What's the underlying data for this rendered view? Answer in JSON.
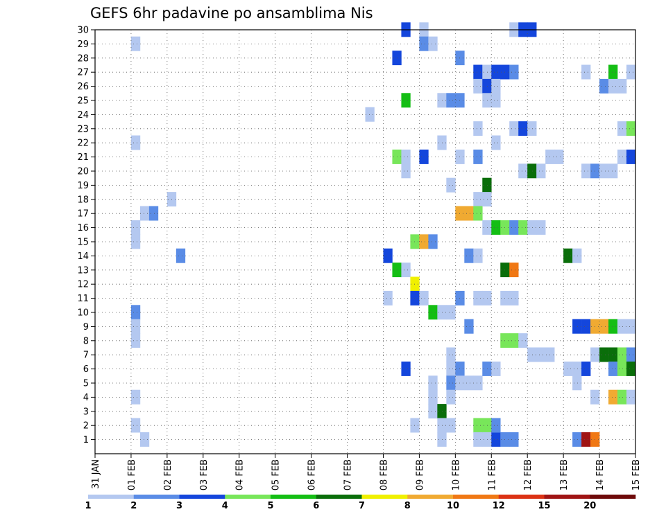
{
  "chart_data": {
    "type": "heatmap",
    "title": "GEFS 6hr padavine po ansamblima Nis",
    "xlabel": "",
    "ylabel": "",
    "x_ticks": [
      "31 JAN",
      "01 FEB",
      "02 FEB",
      "03 FEB",
      "04 FEB",
      "05 FEB",
      "06 FEB",
      "07 FEB",
      "08 FEB",
      "09 FEB",
      "10 FEB",
      "11 FEB",
      "12 FEB",
      "13 FEB",
      "14 FEB",
      "15 FEB"
    ],
    "y_ticks": [
      1,
      2,
      3,
      4,
      5,
      6,
      7,
      8,
      9,
      10,
      11,
      12,
      13,
      14,
      15,
      16,
      17,
      18,
      19,
      20,
      21,
      22,
      23,
      24,
      25,
      26,
      27,
      28,
      29,
      30
    ],
    "x_range_days": [
      0,
      15
    ],
    "y_range": [
      0,
      30
    ],
    "grid": true,
    "colorbar": {
      "labels": [
        "1",
        "2",
        "3",
        "4",
        "5",
        "6",
        "7",
        "8",
        "10",
        "12",
        "15",
        "20"
      ],
      "colors": [
        "#b4c8f0",
        "#5a8ce6",
        "#1446dc",
        "#78e65a",
        "#14be14",
        "#0a6e0a",
        "#f0f000",
        "#f0aa32",
        "#f07814",
        "#dc3214",
        "#a01414",
        "#6e0a0a"
      ]
    },
    "cells": [
      [
        1.0,
        29,
        0
      ],
      [
        1.0,
        22,
        0
      ],
      [
        1.0,
        16,
        0
      ],
      [
        1.0,
        15,
        0
      ],
      [
        1.0,
        10,
        1
      ],
      [
        1.0,
        9,
        0
      ],
      [
        1.0,
        8,
        0
      ],
      [
        1.0,
        4,
        0
      ],
      [
        1.0,
        2,
        0
      ],
      [
        1.25,
        17,
        0
      ],
      [
        1.25,
        1,
        0
      ],
      [
        1.5,
        17,
        1
      ],
      [
        2.0,
        18,
        0
      ],
      [
        2.25,
        14,
        1
      ],
      [
        7.5,
        24,
        0
      ],
      [
        8.0,
        14,
        2
      ],
      [
        8.0,
        11,
        0
      ],
      [
        8.25,
        28,
        2
      ],
      [
        8.25,
        21,
        3
      ],
      [
        8.25,
        13,
        4
      ],
      [
        8.5,
        30,
        2
      ],
      [
        8.5,
        25,
        4
      ],
      [
        8.5,
        21,
        0
      ],
      [
        8.5,
        20,
        0
      ],
      [
        8.5,
        13,
        0
      ],
      [
        8.5,
        6,
        2
      ],
      [
        8.75,
        15,
        3
      ],
      [
        8.75,
        12,
        6
      ],
      [
        8.75,
        11,
        2
      ],
      [
        8.75,
        2,
        0
      ],
      [
        9.0,
        30,
        0
      ],
      [
        9.0,
        29,
        1
      ],
      [
        9.0,
        21,
        2
      ],
      [
        9.0,
        15,
        7
      ],
      [
        9.0,
        11,
        0
      ],
      [
        9.25,
        29,
        0
      ],
      [
        9.25,
        15,
        1
      ],
      [
        9.25,
        10,
        4
      ],
      [
        9.25,
        5,
        0
      ],
      [
        9.25,
        4,
        0
      ],
      [
        9.25,
        3,
        0
      ],
      [
        9.5,
        25,
        0
      ],
      [
        9.5,
        22,
        0
      ],
      [
        9.5,
        10,
        0
      ],
      [
        9.5,
        3,
        5
      ],
      [
        9.5,
        2,
        0
      ],
      [
        9.5,
        1,
        0
      ],
      [
        9.75,
        25,
        1
      ],
      [
        9.75,
        19,
        0
      ],
      [
        9.75,
        10,
        0
      ],
      [
        9.75,
        7,
        0
      ],
      [
        9.75,
        6,
        0
      ],
      [
        9.75,
        5,
        1
      ],
      [
        9.75,
        4,
        0
      ],
      [
        9.75,
        2,
        0
      ],
      [
        10.0,
        28,
        1
      ],
      [
        10.0,
        25,
        1
      ],
      [
        10.0,
        21,
        0
      ],
      [
        10.0,
        17,
        7
      ],
      [
        10.0,
        11,
        1
      ],
      [
        10.0,
        6,
        1
      ],
      [
        10.0,
        5,
        0
      ],
      [
        10.25,
        17,
        7
      ],
      [
        10.25,
        9,
        1
      ],
      [
        10.25,
        14,
        1
      ],
      [
        10.25,
        5,
        0
      ],
      [
        10.5,
        27,
        2
      ],
      [
        10.5,
        26,
        0
      ],
      [
        10.5,
        23,
        0
      ],
      [
        10.5,
        21,
        1
      ],
      [
        10.5,
        18,
        0
      ],
      [
        10.5,
        17,
        3
      ],
      [
        10.5,
        14,
        0
      ],
      [
        10.5,
        11,
        0
      ],
      [
        10.5,
        5,
        0
      ],
      [
        10.5,
        2,
        3
      ],
      [
        10.5,
        1,
        0
      ],
      [
        10.75,
        27,
        0
      ],
      [
        10.75,
        26,
        2
      ],
      [
        10.75,
        25,
        0
      ],
      [
        10.75,
        19,
        5
      ],
      [
        10.75,
        18,
        0
      ],
      [
        10.75,
        16,
        0
      ],
      [
        10.75,
        11,
        0
      ],
      [
        10.75,
        6,
        1
      ],
      [
        10.75,
        2,
        3
      ],
      [
        10.75,
        1,
        0
      ],
      [
        11.0,
        27,
        2
      ],
      [
        11.0,
        26,
        0
      ],
      [
        11.0,
        25,
        0
      ],
      [
        11.0,
        22,
        0
      ],
      [
        11.0,
        16,
        4
      ],
      [
        11.0,
        6,
        0
      ],
      [
        11.0,
        1,
        2
      ],
      [
        11.0,
        2,
        1
      ],
      [
        11.25,
        27,
        2
      ],
      [
        11.25,
        16,
        3
      ],
      [
        11.25,
        13,
        5
      ],
      [
        11.25,
        11,
        0
      ],
      [
        11.25,
        8,
        3
      ],
      [
        11.25,
        1,
        1
      ],
      [
        11.5,
        30,
        0
      ],
      [
        11.5,
        27,
        1
      ],
      [
        11.5,
        23,
        0
      ],
      [
        11.5,
        16,
        1
      ],
      [
        11.5,
        13,
        8
      ],
      [
        11.5,
        11,
        0
      ],
      [
        11.5,
        8,
        3
      ],
      [
        11.5,
        1,
        1
      ],
      [
        11.75,
        30,
        2
      ],
      [
        11.75,
        23,
        2
      ],
      [
        11.75,
        20,
        0
      ],
      [
        11.75,
        16,
        3
      ],
      [
        11.75,
        8,
        0
      ],
      [
        12.0,
        30,
        2
      ],
      [
        12.0,
        23,
        0
      ],
      [
        12.0,
        20,
        5
      ],
      [
        12.0,
        16,
        0
      ],
      [
        12.0,
        7,
        0
      ],
      [
        12.25,
        20,
        0
      ],
      [
        12.25,
        16,
        0
      ],
      [
        12.25,
        7,
        0
      ],
      [
        12.5,
        7,
        0
      ],
      [
        12.5,
        21,
        0
      ],
      [
        12.75,
        21,
        0
      ],
      [
        13.0,
        14,
        5
      ],
      [
        13.0,
        6,
        0
      ],
      [
        13.25,
        14,
        0
      ],
      [
        13.25,
        9,
        2
      ],
      [
        13.25,
        6,
        0
      ],
      [
        13.25,
        5,
        0
      ],
      [
        13.25,
        1,
        1
      ],
      [
        13.5,
        27,
        0
      ],
      [
        13.5,
        20,
        0
      ],
      [
        13.5,
        9,
        2
      ],
      [
        13.5,
        6,
        2
      ],
      [
        13.5,
        1,
        10
      ],
      [
        13.75,
        20,
        1
      ],
      [
        13.75,
        9,
        7
      ],
      [
        13.75,
        7,
        0
      ],
      [
        13.75,
        4,
        0
      ],
      [
        13.75,
        1,
        8
      ],
      [
        14.0,
        26,
        1
      ],
      [
        14.0,
        20,
        0
      ],
      [
        14.0,
        9,
        7
      ],
      [
        14.0,
        7,
        5
      ],
      [
        14.25,
        27,
        4
      ],
      [
        14.25,
        26,
        0
      ],
      [
        14.25,
        20,
        0
      ],
      [
        14.25,
        9,
        4
      ],
      [
        14.25,
        7,
        5
      ],
      [
        14.25,
        6,
        1
      ],
      [
        14.25,
        4,
        7
      ],
      [
        14.5,
        26,
        0
      ],
      [
        14.5,
        23,
        0
      ],
      [
        14.5,
        21,
        0
      ],
      [
        14.5,
        9,
        0
      ],
      [
        14.5,
        7,
        3
      ],
      [
        14.5,
        6,
        3
      ],
      [
        14.5,
        4,
        3
      ],
      [
        14.75,
        27,
        0
      ],
      [
        14.75,
        23,
        3
      ],
      [
        14.75,
        21,
        2
      ],
      [
        14.75,
        9,
        0
      ],
      [
        14.75,
        7,
        1
      ],
      [
        14.75,
        6,
        5
      ],
      [
        14.75,
        4,
        0
      ]
    ]
  }
}
